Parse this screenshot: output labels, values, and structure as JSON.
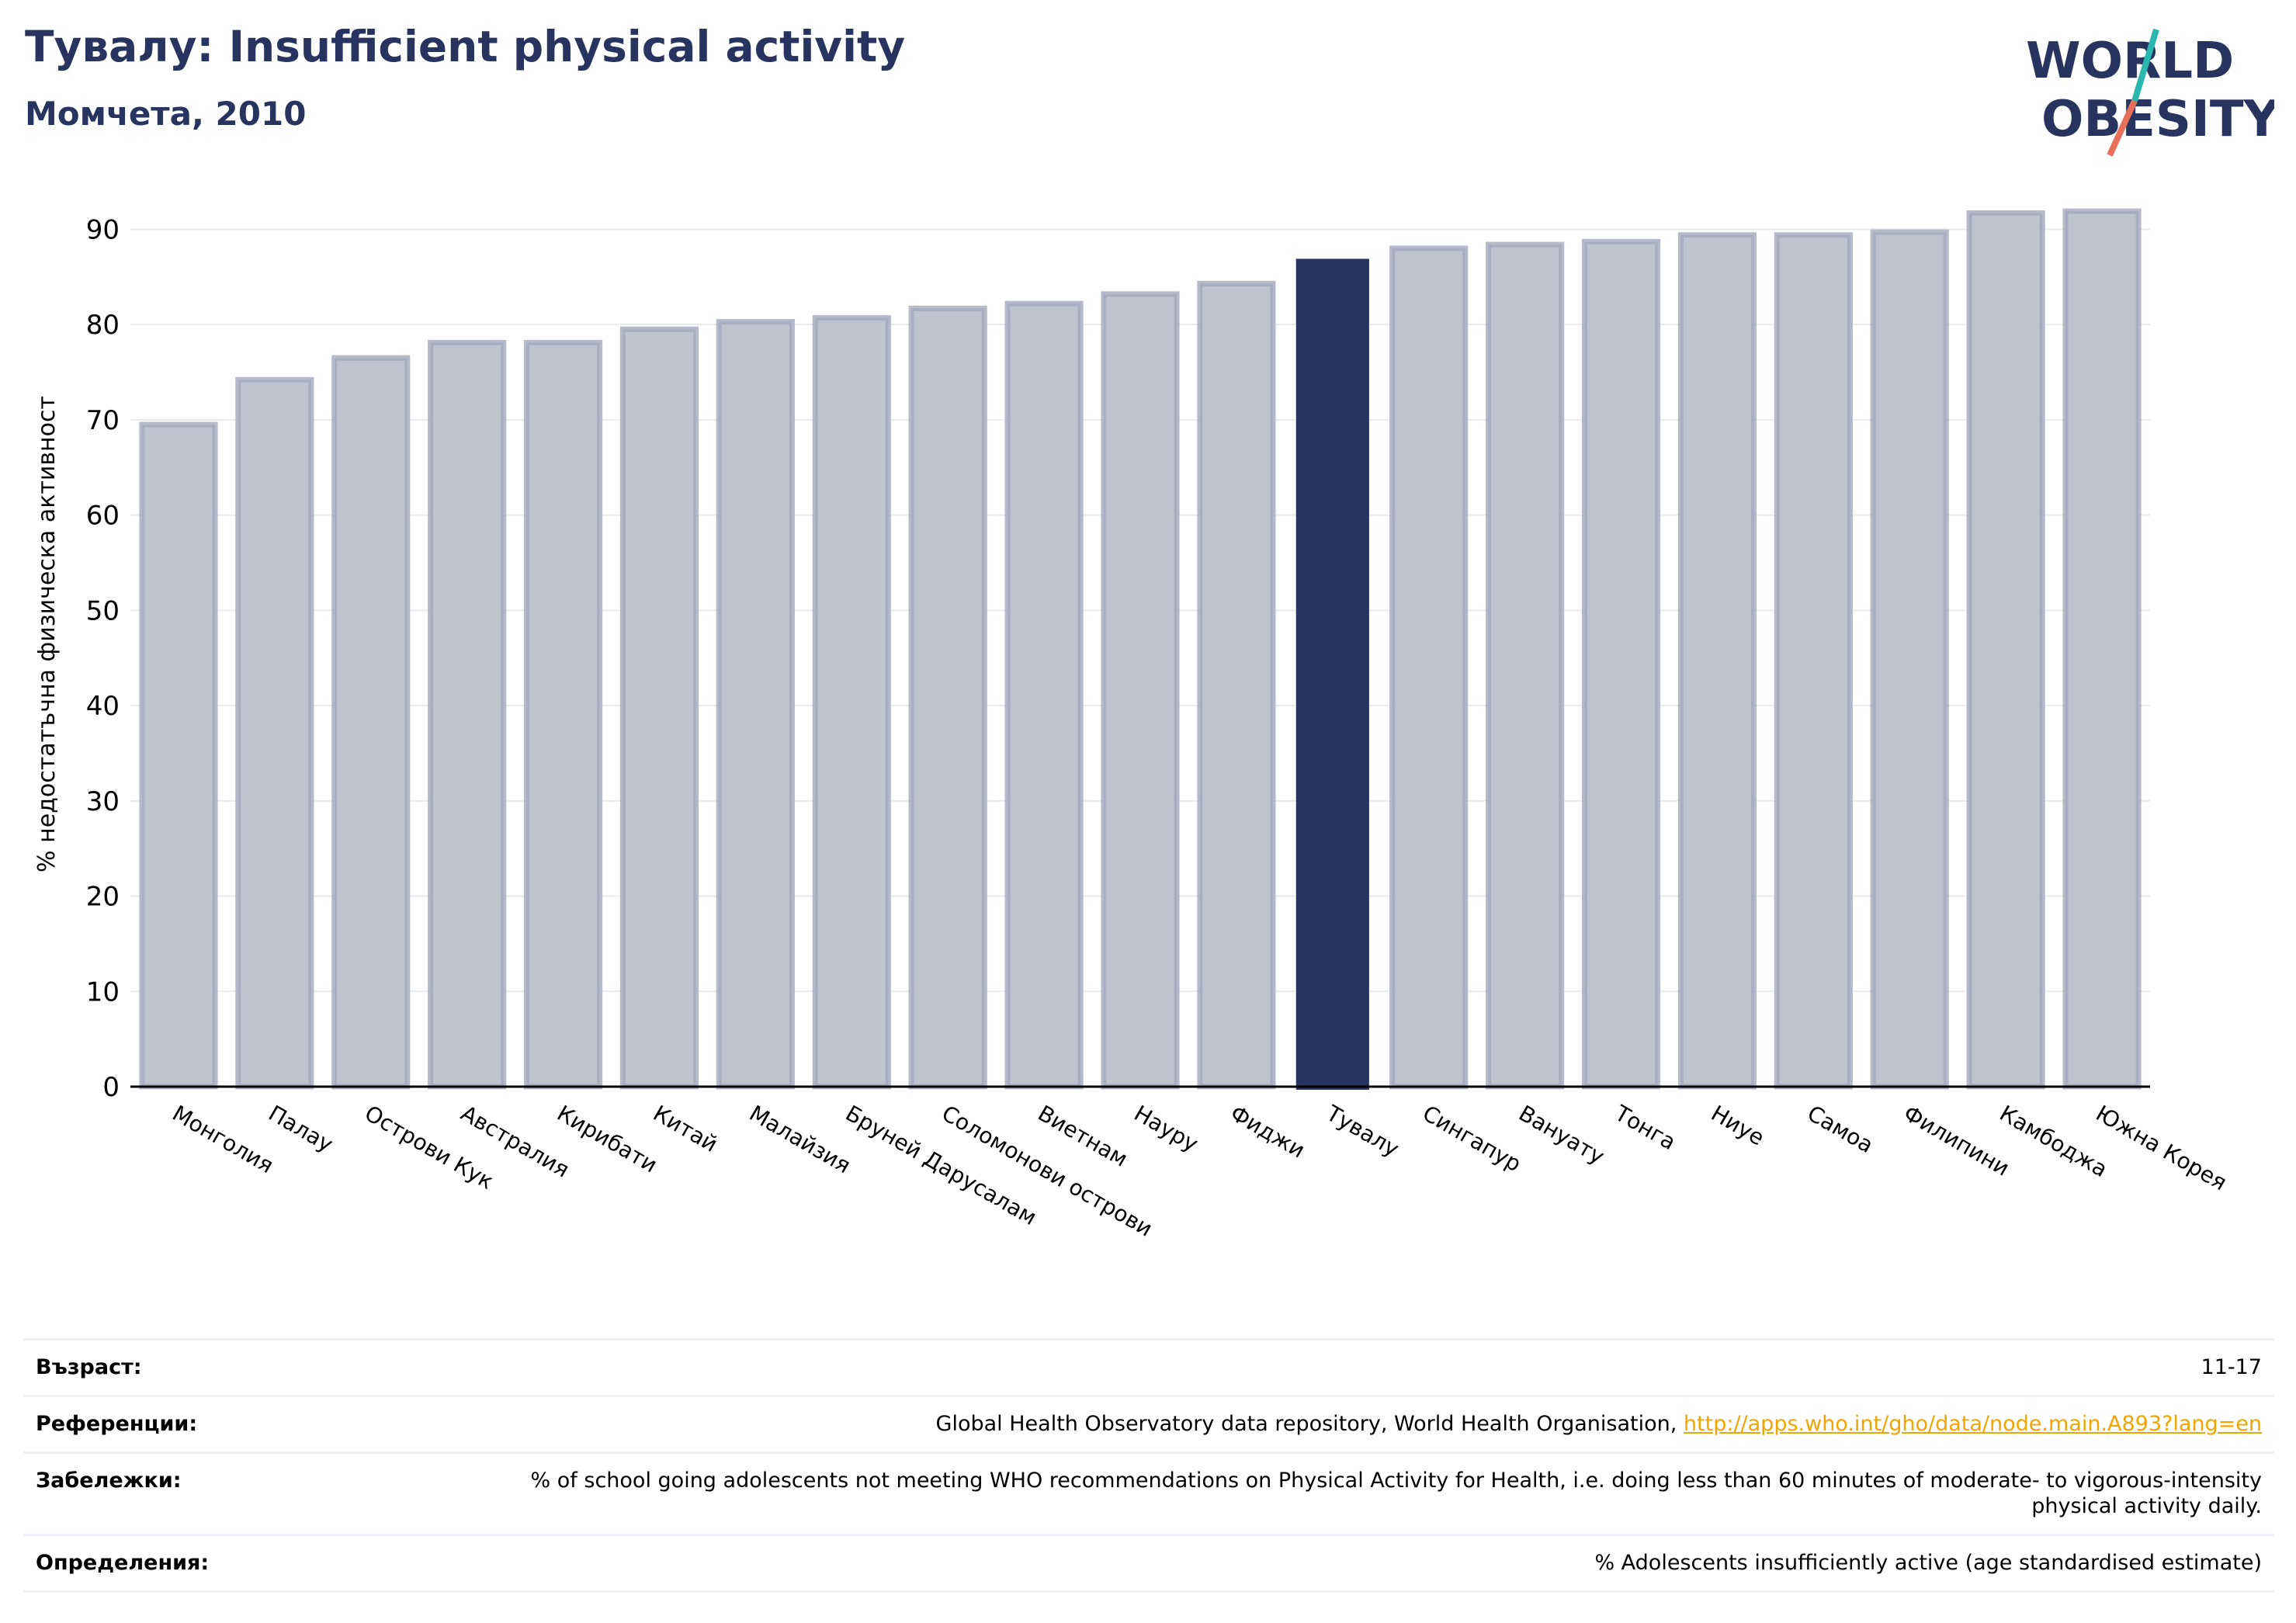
{
  "header": {
    "title": "Тувалу: Insufficient physical activity",
    "subtitle": "Момчета, 2010"
  },
  "logo": {
    "line1": "WORLD",
    "line2": "OBESITY",
    "colors": {
      "text": "#283460",
      "slash_teal": "#2ab7b0",
      "slash_coral": "#e8705a"
    }
  },
  "chart_data": {
    "type": "bar",
    "ylabel": "% недостатъчна физическа активност",
    "ylim": [
      0,
      95
    ],
    "yticks": [
      0,
      10,
      20,
      30,
      40,
      50,
      60,
      70,
      80,
      90
    ],
    "grid": true,
    "categories": [
      "Монголия",
      "Палау",
      "Острови Кук",
      "Австралия",
      "Кирибати",
      "Китай",
      "Малайзия",
      "Бруней Дарусалам",
      "Соломонови острови",
      "Виетнам",
      "Науру",
      "Фиджи",
      "Тувалу",
      "Сингапур",
      "Вануату",
      "Тонга",
      "Ниуе",
      "Самоа",
      "Филипини",
      "Камбоджа",
      "Южна Корея"
    ],
    "values": [
      69.5,
      74.2,
      76.5,
      78.1,
      78.1,
      79.5,
      80.3,
      80.7,
      81.7,
      82.2,
      83.2,
      84.3,
      86.9,
      88.0,
      88.4,
      88.7,
      89.4,
      89.4,
      89.7,
      91.7,
      91.9
    ],
    "highlight": "Тувалу",
    "colors": {
      "bar": "#bfc2cf",
      "bar_edge": "#a4a8bd",
      "highlight": "#283460",
      "grid": "#e8eaf0",
      "axis": "#000000"
    }
  },
  "info": [
    {
      "label": "Възраст:",
      "value": "11-17"
    },
    {
      "label": "Референции:",
      "value": "Global Health Observatory data repository, World Health Organisation, ",
      "link": "http://apps.who.int/gho/data/node.main.A893?lang=en"
    },
    {
      "label": "Забележки:",
      "value": "% of school going adolescents not meeting WHO recommendations on Physical Activity for Health, i.e. doing less than 60 minutes of moderate- to vigorous-intensity physical activity daily."
    },
    {
      "label": "Определения:",
      "value": "% Adolescents insufficiently active (age standardised estimate)"
    }
  ]
}
